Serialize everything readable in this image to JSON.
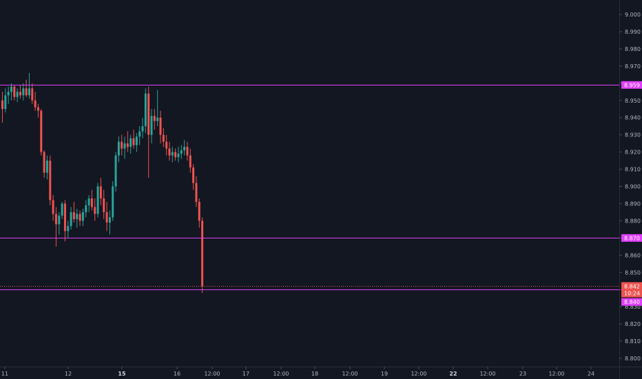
{
  "chart_data": {
    "type": "candlestick",
    "price_axis": {
      "range": [
        8.795,
        9.006
      ],
      "ticks": [
        "9.000",
        "8.990",
        "8.980",
        "8.970",
        "8.960",
        "8.950",
        "8.940",
        "8.930",
        "8.920",
        "8.910",
        "8.900",
        "8.890",
        "8.880",
        "8.870",
        "8.860",
        "8.850",
        "8.840",
        "8.830",
        "8.820",
        "8.810",
        "8.800"
      ]
    },
    "time_axis": {
      "labels": [
        {
          "text": "11",
          "bold": false
        },
        {
          "text": "12",
          "bold": false
        },
        {
          "text": "15",
          "bold": true
        },
        {
          "text": "16",
          "bold": false
        },
        {
          "text": "12:00",
          "bold": false
        },
        {
          "text": "17",
          "bold": false
        },
        {
          "text": "12:00",
          "bold": false
        },
        {
          "text": "18",
          "bold": false
        },
        {
          "text": "12:00",
          "bold": false
        },
        {
          "text": "19",
          "bold": false
        },
        {
          "text": "12:00",
          "bold": false
        },
        {
          "text": "22",
          "bold": true
        },
        {
          "text": "12:00",
          "bold": false
        },
        {
          "text": "23",
          "bold": false
        },
        {
          "text": "12:00",
          "bold": false
        },
        {
          "text": "24",
          "bold": false
        }
      ]
    },
    "horizontal_lines": [
      {
        "price": 8.959,
        "label": "8.959",
        "color": "#e040fb"
      },
      {
        "price": 8.87,
        "label": "8.870",
        "color": "#e040fb"
      },
      {
        "price": 8.84,
        "label": "8.840",
        "color": "#e040fb"
      }
    ],
    "last_price": {
      "price": 8.842,
      "label": "8.842",
      "countdown": "10:24",
      "color": "#ef5350"
    },
    "colors": {
      "background": "#131722",
      "up": "#26a69a",
      "down": "#ef5350",
      "axis_text": "#b2b5be",
      "grid": "#2a2e39"
    },
    "candles": [
      {
        "o": 8.95,
        "h": 8.955,
        "l": 8.937,
        "c": 8.945
      },
      {
        "o": 8.945,
        "h": 8.957,
        "l": 8.943,
        "c": 8.953
      },
      {
        "o": 8.953,
        "h": 8.958,
        "l": 8.948,
        "c": 8.955
      },
      {
        "o": 8.955,
        "h": 8.96,
        "l": 8.95,
        "c": 8.958
      },
      {
        "o": 8.958,
        "h": 8.959,
        "l": 8.95,
        "c": 8.952
      },
      {
        "o": 8.952,
        "h": 8.957,
        "l": 8.949,
        "c": 8.955
      },
      {
        "o": 8.955,
        "h": 8.959,
        "l": 8.951,
        "c": 8.953
      },
      {
        "o": 8.953,
        "h": 8.96,
        "l": 8.95,
        "c": 8.957
      },
      {
        "o": 8.957,
        "h": 8.962,
        "l": 8.952,
        "c": 8.953
      },
      {
        "o": 8.953,
        "h": 8.966,
        "l": 8.951,
        "c": 8.957
      },
      {
        "o": 8.957,
        "h": 8.96,
        "l": 8.948,
        "c": 8.95
      },
      {
        "o": 8.95,
        "h": 8.955,
        "l": 8.944,
        "c": 8.946
      },
      {
        "o": 8.946,
        "h": 8.948,
        "l": 8.94,
        "c": 8.944
      },
      {
        "o": 8.944,
        "h": 8.945,
        "l": 8.918,
        "c": 8.92
      },
      {
        "o": 8.92,
        "h": 8.921,
        "l": 8.905,
        "c": 8.908
      },
      {
        "o": 8.908,
        "h": 8.918,
        "l": 8.904,
        "c": 8.915
      },
      {
        "o": 8.915,
        "h": 8.918,
        "l": 8.889,
        "c": 8.892
      },
      {
        "o": 8.892,
        "h": 8.895,
        "l": 8.88,
        "c": 8.884
      },
      {
        "o": 8.884,
        "h": 8.888,
        "l": 8.865,
        "c": 8.878
      },
      {
        "o": 8.878,
        "h": 8.885,
        "l": 8.872,
        "c": 8.883
      },
      {
        "o": 8.883,
        "h": 8.891,
        "l": 8.881,
        "c": 8.89
      },
      {
        "o": 8.89,
        "h": 8.892,
        "l": 8.868,
        "c": 8.874
      },
      {
        "o": 8.874,
        "h": 8.88,
        "l": 8.87,
        "c": 8.877
      },
      {
        "o": 8.877,
        "h": 8.888,
        "l": 8.875,
        "c": 8.885
      },
      {
        "o": 8.885,
        "h": 8.891,
        "l": 8.879,
        "c": 8.881
      },
      {
        "o": 8.881,
        "h": 8.887,
        "l": 8.876,
        "c": 8.884
      },
      {
        "o": 8.884,
        "h": 8.886,
        "l": 8.877,
        "c": 8.88
      },
      {
        "o": 8.88,
        "h": 8.887,
        "l": 8.877,
        "c": 8.885
      },
      {
        "o": 8.885,
        "h": 8.892,
        "l": 8.882,
        "c": 8.889
      },
      {
        "o": 8.889,
        "h": 8.895,
        "l": 8.885,
        "c": 8.893
      },
      {
        "o": 8.893,
        "h": 8.898,
        "l": 8.886,
        "c": 8.888
      },
      {
        "o": 8.888,
        "h": 8.893,
        "l": 8.88,
        "c": 8.884
      },
      {
        "o": 8.884,
        "h": 8.902,
        "l": 8.882,
        "c": 8.9
      },
      {
        "o": 8.9,
        "h": 8.905,
        "l": 8.889,
        "c": 8.893
      },
      {
        "o": 8.893,
        "h": 8.898,
        "l": 8.881,
        "c": 8.885
      },
      {
        "o": 8.885,
        "h": 8.891,
        "l": 8.874,
        "c": 8.879
      },
      {
        "o": 8.879,
        "h": 8.886,
        "l": 8.872,
        "c": 8.882
      },
      {
        "o": 8.882,
        "h": 8.903,
        "l": 8.88,
        "c": 8.9
      },
      {
        "o": 8.9,
        "h": 8.92,
        "l": 8.897,
        "c": 8.918
      },
      {
        "o": 8.918,
        "h": 8.929,
        "l": 8.914,
        "c": 8.926
      },
      {
        "o": 8.926,
        "h": 8.93,
        "l": 8.918,
        "c": 8.922
      },
      {
        "o": 8.922,
        "h": 8.929,
        "l": 8.916,
        "c": 8.925
      },
      {
        "o": 8.925,
        "h": 8.932,
        "l": 8.92,
        "c": 8.923
      },
      {
        "o": 8.923,
        "h": 8.93,
        "l": 8.919,
        "c": 8.928
      },
      {
        "o": 8.928,
        "h": 8.933,
        "l": 8.922,
        "c": 8.924
      },
      {
        "o": 8.924,
        "h": 8.931,
        "l": 8.92,
        "c": 8.929
      },
      {
        "o": 8.929,
        "h": 8.935,
        "l": 8.924,
        "c": 8.932
      },
      {
        "o": 8.932,
        "h": 8.94,
        "l": 8.928,
        "c": 8.935
      },
      {
        "o": 8.935,
        "h": 8.957,
        "l": 8.931,
        "c": 8.954
      },
      {
        "o": 8.954,
        "h": 8.958,
        "l": 8.905,
        "c": 8.93
      },
      {
        "o": 8.93,
        "h": 8.945,
        "l": 8.925,
        "c": 8.941
      },
      {
        "o": 8.941,
        "h": 8.945,
        "l": 8.933,
        "c": 8.938
      },
      {
        "o": 8.938,
        "h": 8.956,
        "l": 8.935,
        "c": 8.94
      },
      {
        "o": 8.94,
        "h": 8.944,
        "l": 8.925,
        "c": 8.93
      },
      {
        "o": 8.93,
        "h": 8.934,
        "l": 8.923,
        "c": 8.926
      },
      {
        "o": 8.926,
        "h": 8.93,
        "l": 8.918,
        "c": 8.922
      },
      {
        "o": 8.922,
        "h": 8.926,
        "l": 8.915,
        "c": 8.918
      },
      {
        "o": 8.918,
        "h": 8.923,
        "l": 8.914,
        "c": 8.92
      },
      {
        "o": 8.92,
        "h": 8.922,
        "l": 8.915,
        "c": 8.917
      },
      {
        "o": 8.917,
        "h": 8.923,
        "l": 8.914,
        "c": 8.919
      },
      {
        "o": 8.919,
        "h": 8.924,
        "l": 8.916,
        "c": 8.921
      },
      {
        "o": 8.921,
        "h": 8.927,
        "l": 8.918,
        "c": 8.923
      },
      {
        "o": 8.923,
        "h": 8.926,
        "l": 8.915,
        "c": 8.918
      },
      {
        "o": 8.918,
        "h": 8.922,
        "l": 8.908,
        "c": 8.911
      },
      {
        "o": 8.911,
        "h": 8.913,
        "l": 8.898,
        "c": 8.902
      },
      {
        "o": 8.902,
        "h": 8.906,
        "l": 8.888,
        "c": 8.891
      },
      {
        "o": 8.891,
        "h": 8.893,
        "l": 8.876,
        "c": 8.88
      },
      {
        "o": 8.88,
        "h": 8.882,
        "l": 8.838,
        "c": 8.842
      }
    ]
  }
}
